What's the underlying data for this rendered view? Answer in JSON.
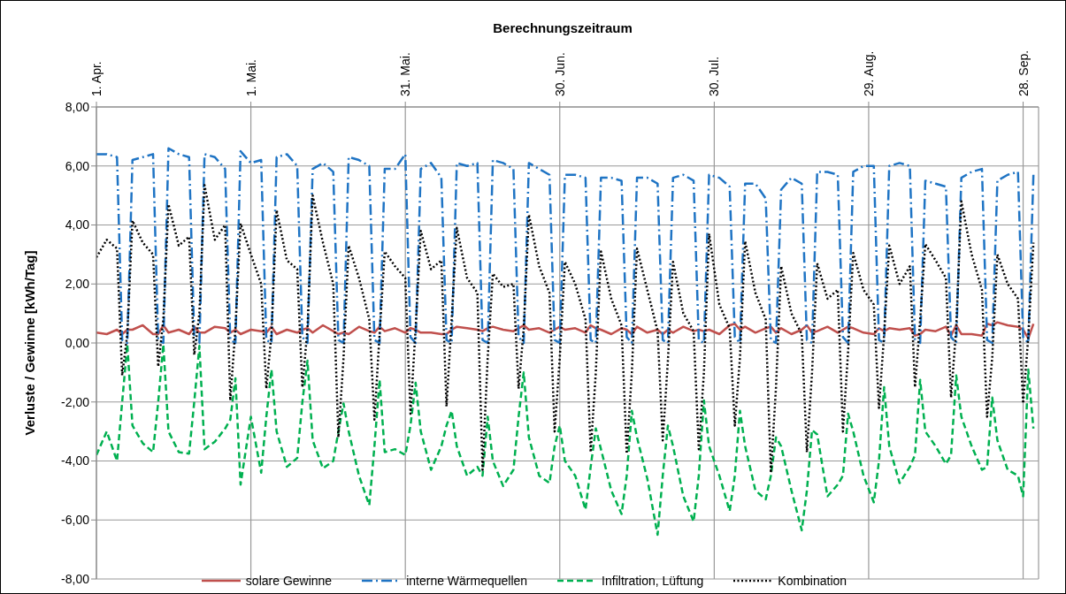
{
  "chart_data": {
    "type": "line",
    "title": "Berechnungszeitraum",
    "ylabel": "Verluste / Gewinne [kWh/Tag]",
    "x": [
      "--04-01",
      "--04-03",
      "--04-05",
      "--04-06",
      "--04-07",
      "--04-08",
      "--04-10",
      "--04-12",
      "--04-13",
      "--04-14",
      "--04-15",
      "--04-17",
      "--04-19",
      "--04-20",
      "--04-21",
      "--04-22",
      "--04-24",
      "--04-26",
      "--04-27",
      "--04-28",
      "--04-29",
      "--05-01",
      "--05-03",
      "--05-04",
      "--05-05",
      "--05-06",
      "--05-08",
      "--05-10",
      "--05-11",
      "--05-12",
      "--05-13",
      "--05-15",
      "--05-17",
      "--05-18",
      "--05-19",
      "--05-20",
      "--05-22",
      "--05-24",
      "--05-25",
      "--05-26",
      "--05-27",
      "--05-29",
      "--05-31",
      "--06-01",
      "--06-02",
      "--06-03",
      "--06-05",
      "--06-07",
      "--06-08",
      "--06-09",
      "--06-10",
      "--06-12",
      "--06-14",
      "--06-15",
      "--06-16",
      "--06-17",
      "--06-19",
      "--06-21",
      "--06-22",
      "--06-23",
      "--06-24",
      "--06-26",
      "--06-28",
      "--06-29",
      "--06-30",
      "--07-01",
      "--07-03",
      "--07-05",
      "--07-06",
      "--07-07",
      "--07-08",
      "--07-10",
      "--07-12",
      "--07-13",
      "--07-14",
      "--07-15",
      "--07-17",
      "--07-19",
      "--07-20",
      "--07-21",
      "--07-22",
      "--07-24",
      "--07-26",
      "--07-27",
      "--07-28",
      "--07-29",
      "--07-31",
      "--08-02",
      "--08-03",
      "--08-04",
      "--08-05",
      "--08-07",
      "--08-09",
      "--08-10",
      "--08-11",
      "--08-12",
      "--08-14",
      "--08-16",
      "--08-17",
      "--08-18",
      "--08-19",
      "--08-21",
      "--08-23",
      "--08-24",
      "--08-25",
      "--08-26",
      "--08-28",
      "--08-30",
      "--08-31",
      "--09-01",
      "--09-02",
      "--09-04",
      "--09-06",
      "--09-07",
      "--09-08",
      "--09-09",
      "--09-11",
      "--09-13",
      "--09-14",
      "--09-15",
      "--09-16",
      "--09-18",
      "--09-20",
      "--09-21",
      "--09-22",
      "--09-23",
      "--09-25",
      "--09-27",
      "--09-28",
      "--09-29",
      "--09-30"
    ],
    "series": [
      {
        "name": "solare Gewinne",
        "color": "#c0504d",
        "line_style": "solid",
        "values": [
          0.35,
          0.3,
          0.45,
          0.3,
          0.45,
          0.45,
          0.6,
          0.3,
          0.3,
          0.6,
          0.35,
          0.45,
          0.3,
          0.55,
          0.35,
          0.35,
          0.55,
          0.5,
          0.35,
          0.45,
          0.3,
          0.45,
          0.4,
          0.35,
          0.55,
          0.3,
          0.45,
          0.35,
          0.45,
          0.5,
          0.35,
          0.6,
          0.4,
          0.3,
          0.35,
          0.3,
          0.55,
          0.4,
          0.35,
          0.55,
          0.4,
          0.5,
          0.35,
          0.5,
          0.45,
          0.35,
          0.35,
          0.3,
          0.3,
          0.45,
          0.55,
          0.5,
          0.45,
          0.4,
          0.5,
          0.55,
          0.45,
          0.4,
          0.5,
          0.6,
          0.45,
          0.5,
          0.35,
          0.45,
          0.55,
          0.45,
          0.5,
          0.35,
          0.6,
          0.5,
          0.45,
          0.3,
          0.5,
          0.45,
          0.3,
          0.55,
          0.35,
          0.45,
          0.3,
          0.45,
          0.35,
          0.55,
          0.4,
          0.45,
          0.4,
          0.45,
          0.3,
          0.6,
          0.65,
          0.45,
          0.55,
          0.35,
          0.5,
          0.55,
          0.35,
          0.5,
          0.3,
          0.45,
          0.6,
          0.35,
          0.4,
          0.55,
          0.35,
          0.45,
          0.55,
          0.5,
          0.35,
          0.3,
          0.5,
          0.4,
          0.5,
          0.45,
          0.5,
          0.25,
          0.3,
          0.45,
          0.4,
          0.55,
          0.25,
          0.6,
          0.3,
          0.3,
          0.25,
          0.65,
          0.6,
          0.7,
          0.6,
          0.55,
          0.45,
          0.15,
          0.65
        ]
      },
      {
        "name": "interne Wärmequellen",
        "color": "#1f74c4",
        "line_style": "dashdot",
        "values": [
          6.4,
          6.4,
          6.3,
          0.1,
          0.0,
          6.2,
          6.3,
          6.4,
          0.1,
          0.0,
          6.6,
          6.4,
          6.3,
          0.2,
          0.0,
          6.4,
          6.3,
          5.9,
          0.1,
          0.0,
          6.5,
          6.1,
          6.2,
          0.1,
          0.0,
          6.3,
          6.4,
          6.0,
          0.2,
          0.0,
          5.9,
          6.1,
          5.8,
          0.1,
          0.0,
          6.3,
          6.2,
          6.0,
          0.1,
          0.0,
          5.9,
          5.9,
          6.4,
          0.2,
          0.0,
          5.9,
          6.1,
          5.6,
          0.1,
          0.0,
          6.1,
          6.0,
          6.1,
          0.1,
          0.0,
          6.2,
          6.1,
          5.9,
          0.2,
          0.0,
          6.1,
          5.9,
          5.7,
          0.1,
          0.0,
          5.7,
          5.7,
          5.6,
          0.1,
          0.0,
          5.6,
          5.6,
          5.5,
          0.2,
          0.0,
          5.6,
          5.6,
          5.4,
          0.1,
          0.0,
          5.6,
          5.7,
          5.5,
          0.1,
          0.0,
          5.7,
          5.6,
          5.3,
          0.2,
          0.0,
          5.4,
          5.4,
          4.9,
          0.1,
          0.0,
          5.2,
          5.6,
          5.4,
          0.1,
          0.0,
          5.8,
          5.8,
          5.7,
          0.2,
          0.0,
          5.8,
          6.0,
          6.0,
          0.1,
          0.0,
          6.0,
          6.1,
          6.0,
          0.1,
          0.0,
          5.5,
          5.4,
          5.3,
          0.2,
          0.0,
          5.6,
          5.8,
          5.9,
          0.1,
          0.0,
          5.5,
          5.7,
          5.8,
          0.2,
          0.0,
          5.7
        ]
      },
      {
        "name": "Infiltration, Lüftung",
        "color": "#00b050",
        "line_style": "dashed",
        "values": [
          -3.8,
          -3.0,
          -4.0,
          -2.0,
          -0.05,
          -2.8,
          -3.4,
          -3.7,
          -2.0,
          -0.05,
          -3.0,
          -3.7,
          -3.75,
          -2.0,
          -0.1,
          -3.6,
          -3.35,
          -2.9,
          -2.6,
          -1.2,
          -4.8,
          -2.5,
          -4.4,
          -2.5,
          -0.9,
          -3.0,
          -4.2,
          -3.9,
          -2.0,
          -0.6,
          -3.3,
          -4.25,
          -4.0,
          -3.0,
          -2.05,
          -3.0,
          -4.5,
          -5.5,
          -3.5,
          -1.25,
          -3.7,
          -3.6,
          -3.8,
          -2.8,
          -1.35,
          -3.0,
          -4.3,
          -3.5,
          -2.8,
          -2.3,
          -3.5,
          -4.5,
          -4.2,
          -4.5,
          -2.5,
          -4.0,
          -4.85,
          -4.3,
          -2.5,
          -1.0,
          -3.2,
          -4.5,
          -4.75,
          -3.5,
          -2.8,
          -4.0,
          -4.5,
          -5.65,
          -4.2,
          -2.9,
          -3.6,
          -5.0,
          -5.8,
          -4.5,
          -2.3,
          -3.2,
          -4.6,
          -6.5,
          -4.5,
          -2.8,
          -3.5,
          -5.2,
          -6.05,
          -4.5,
          -1.95,
          -3.5,
          -4.5,
          -5.7,
          -4.5,
          -2.3,
          -3.5,
          -5.0,
          -5.3,
          -4.5,
          -3.2,
          -3.5,
          -5.0,
          -6.35,
          -5.0,
          -2.95,
          -3.1,
          -5.2,
          -4.8,
          -4.5,
          -2.4,
          -3.0,
          -4.5,
          -5.4,
          -4.0,
          -1.5,
          -3.5,
          -4.75,
          -4.2,
          -3.8,
          -1.25,
          -3.0,
          -3.5,
          -4.1,
          -3.8,
          -1.1,
          -2.5,
          -3.5,
          -4.3,
          -4.2,
          -1.85,
          -3.3,
          -4.3,
          -4.5,
          -5.2,
          -0.9,
          -2.9
        ]
      },
      {
        "name": "Kombination",
        "color": "#000000",
        "line_style": "dotted",
        "values": [
          2.9,
          3.5,
          3.2,
          -1.1,
          0.3,
          4.15,
          3.4,
          3.0,
          -0.8,
          0.8,
          4.7,
          3.3,
          3.6,
          -0.4,
          1.0,
          5.35,
          3.5,
          4.0,
          -1.95,
          0.5,
          4.05,
          3.0,
          2.0,
          -1.55,
          0.3,
          4.5,
          2.8,
          2.5,
          -1.5,
          0.5,
          5.0,
          3.4,
          2.0,
          -3.2,
          -0.5,
          3.3,
          2.2,
          0.8,
          -2.6,
          0.3,
          3.1,
          2.6,
          2.2,
          -2.4,
          0.5,
          3.8,
          2.5,
          2.8,
          -2.15,
          0.8,
          3.9,
          2.2,
          1.7,
          -4.3,
          -0.5,
          2.35,
          1.9,
          2.0,
          -1.55,
          0.5,
          4.35,
          2.6,
          1.7,
          -3.0,
          -0.5,
          2.75,
          2.0,
          0.8,
          -3.7,
          -1.0,
          3.1,
          1.5,
          0.6,
          -3.75,
          -1.0,
          3.2,
          1.8,
          0.4,
          -3.3,
          -0.6,
          2.75,
          1.0,
          0.4,
          -3.6,
          -1.0,
          3.7,
          1.3,
          0.5,
          -2.8,
          -0.5,
          3.45,
          1.7,
          0.8,
          -4.4,
          -1.5,
          2.6,
          1.0,
          0.3,
          -3.7,
          -1.0,
          2.7,
          1.5,
          1.8,
          -3.0,
          -0.3,
          3.05,
          1.8,
          1.3,
          -2.2,
          0.3,
          3.3,
          2.0,
          2.6,
          -1.5,
          0.8,
          3.35,
          2.8,
          2.2,
          -1.85,
          0.5,
          4.8,
          3.0,
          1.8,
          -2.5,
          -0.5,
          3.0,
          2.0,
          1.5,
          -2.05,
          0.2,
          3.4
        ]
      }
    ],
    "xlim": [
      "--04-01",
      "--10-01"
    ],
    "xticks": [
      {
        "value": "--04-01",
        "label": "1. Apr."
      },
      {
        "value": "--05-01",
        "label": "1. Mai."
      },
      {
        "value": "--05-31",
        "label": "31. Mai."
      },
      {
        "value": "--06-30",
        "label": "30. Jun."
      },
      {
        "value": "--07-30",
        "label": "30. Jul."
      },
      {
        "value": "--08-29",
        "label": "29. Aug."
      },
      {
        "value": "--09-28",
        "label": "28. Sep."
      }
    ],
    "ylim": [
      -8,
      8
    ],
    "yticks": [
      {
        "value": -8,
        "label": "-8,00"
      },
      {
        "value": -6,
        "label": "-6,00"
      },
      {
        "value": -4,
        "label": "-4,00"
      },
      {
        "value": -2,
        "label": "-2,00"
      },
      {
        "value": 0,
        "label": "0,00"
      },
      {
        "value": 2,
        "label": "2,00"
      },
      {
        "value": 4,
        "label": "4,00"
      },
      {
        "value": 6,
        "label": "6,00"
      },
      {
        "value": 8,
        "label": "8,00"
      }
    ],
    "grid": true,
    "legend": "bottom"
  }
}
